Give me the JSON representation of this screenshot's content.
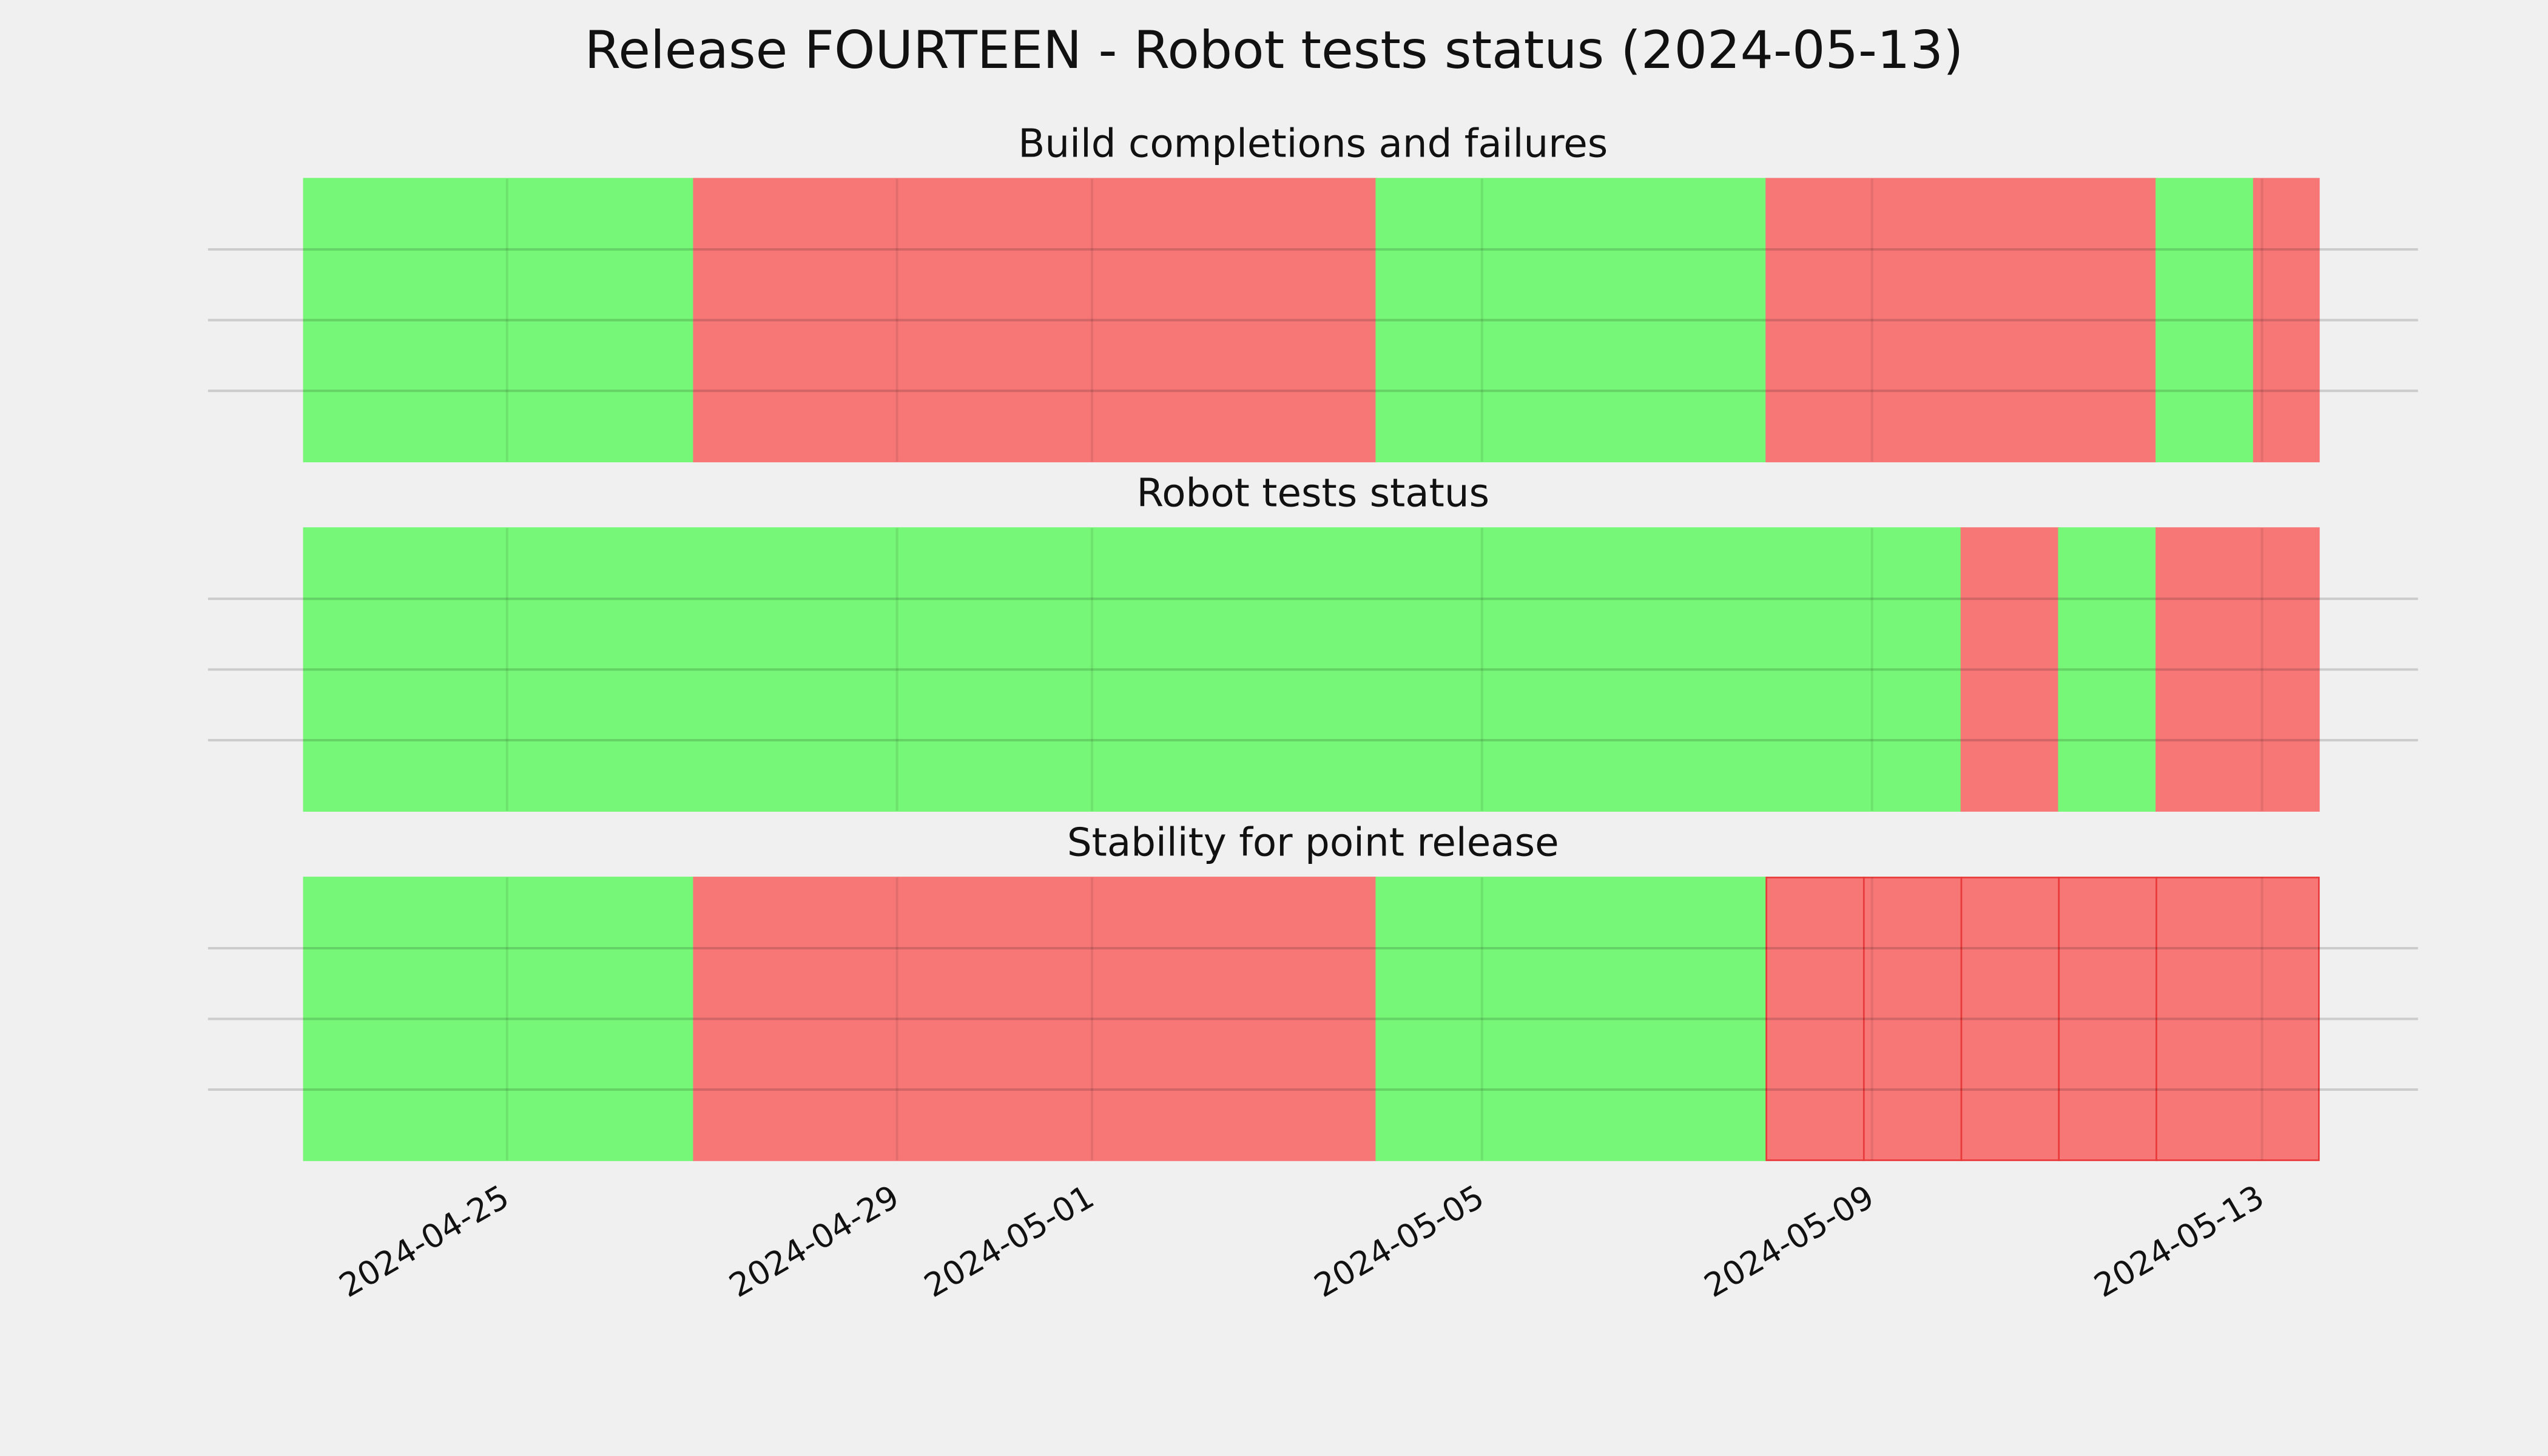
{
  "title": "Release FOURTEEN - Robot tests status (2024-05-13)",
  "chart_data": [
    {
      "type": "timeline",
      "title": "Build completions and failures",
      "starts": [
        "2024-04-22T22:00",
        "2024-04-26T22:00",
        "2024-05-03T22:00",
        "2024-05-07T22:00",
        "2024-05-11T22:00",
        "2024-05-12T22:00"
      ],
      "ends": [
        "2024-04-26T22:00",
        "2024-05-03T22:00",
        "2024-05-07T22:00",
        "2024-05-11T22:00",
        "2024-05-12T22:00",
        "2024-05-13T14:00"
      ],
      "colors": [
        "#77f777",
        "#f77777",
        "#77f777",
        "#f77777",
        "#77f777",
        "#f77777"
      ],
      "edgecolors": [
        "#77f777",
        "#f77777",
        "#77f777",
        "#f77777",
        "#77f777",
        "#f77777"
      ],
      "xlim": [
        "2024-04-21T22:24",
        "2024-05-14T14:24"
      ],
      "ylim": [
        0,
        1
      ],
      "yticks": [
        0.25,
        0.5,
        0.75
      ],
      "grid": true
    },
    {
      "type": "timeline",
      "title": "Robot tests status",
      "starts": [
        "2024-04-22T22:00",
        "2024-05-09T22:00",
        "2024-05-10T22:00",
        "2024-05-11T22:00"
      ],
      "ends": [
        "2024-05-09T22:00",
        "2024-05-10T22:00",
        "2024-05-11T22:00",
        "2024-05-13T14:00"
      ],
      "colors": [
        "#77f777",
        "#f77777",
        "#77f777",
        "#f77777"
      ],
      "edgecolors": [
        "#77f777",
        "#f77777",
        "#77f777",
        "#f77777"
      ],
      "xlim": [
        "2024-04-21T22:24",
        "2024-05-14T14:24"
      ],
      "ylim": [
        0,
        1
      ],
      "yticks": [
        0.25,
        0.5,
        0.75
      ],
      "grid": true
    },
    {
      "type": "timeline",
      "title": "Stability for point release",
      "starts": [
        "2024-04-22T22:00",
        "2024-04-26T22:00",
        "2024-05-03T22:00",
        "2024-05-07T22:00",
        "2024-05-08T22:00",
        "2024-05-09T22:00",
        "2024-05-10T22:00",
        "2024-05-11T22:00"
      ],
      "ends": [
        "2024-04-26T22:00",
        "2024-05-03T22:00",
        "2024-05-07T22:00",
        "2024-05-08T22:00",
        "2024-05-09T22:00",
        "2024-05-10T22:00",
        "2024-05-11T22:00",
        "2024-05-13T14:00"
      ],
      "colors": [
        "#77f777",
        "#f77777",
        "#77f777",
        "#f77777",
        "#f77777",
        "#f77777",
        "#f77777",
        "#f77777"
      ],
      "edgecolors": [
        "#77f777",
        "#f77777",
        "#77f777",
        "#e83a3a",
        "#e83a3a",
        "#e83a3a",
        "#e83a3a",
        "#e83a3a"
      ],
      "xlim": [
        "2024-04-21T22:24",
        "2024-05-14T14:24"
      ],
      "ylim": [
        0,
        1
      ],
      "yticks": [
        0.25,
        0.5,
        0.75
      ],
      "grid": true,
      "xticks": [
        "2024-04-25",
        "2024-04-29",
        "2024-05-01",
        "2024-05-05",
        "2024-05-09",
        "2024-05-13"
      ]
    }
  ]
}
